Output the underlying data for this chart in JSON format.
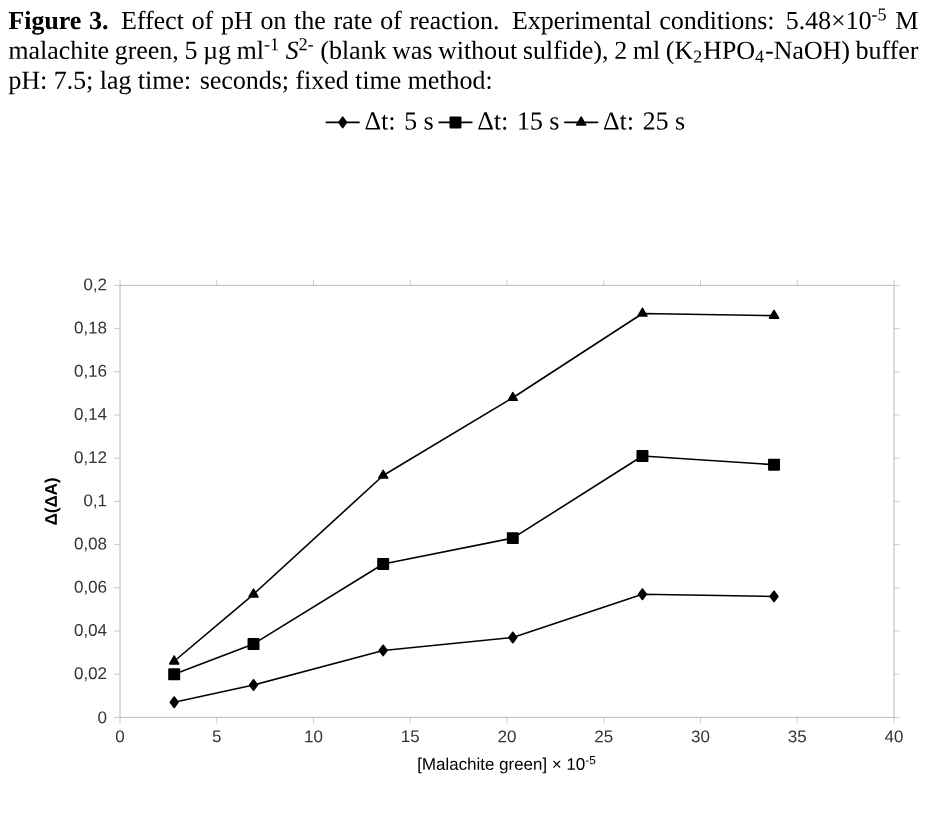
{
  "chart_data": {
    "type": "line",
    "title": "**Figure 3.** Effect of pH on the rate of reaction. Experimental conditions: 5.48×10$^{-5}$ M malachite green, 5 µg ml$^{-1}$ *S*$^{2-}$ (blank was without sulfide), 2 ml (K$_{2}$HPO$_{4}$-NaOH) buffer pH: 7.5; lag time: seconds; fixed time method:",
    "xlabel": "[Malachite green] × 10$^{-5}$",
    "ylabel": "Δ(ΔA)",
    "x": [
      2.8,
      6.9,
      13.6,
      20.3,
      27.0,
      33.8
    ],
    "series": [
      {
        "name": "Δt: 5 s",
        "color": "#000000",
        "marker": "diamond",
        "values": [
          0.007,
          0.015,
          0.031,
          0.037,
          0.057,
          0.056
        ]
      },
      {
        "name": "Δt: 15 s",
        "color": "#000000",
        "marker": "square",
        "values": [
          0.02,
          0.034,
          0.071,
          0.083,
          0.121,
          0.117
        ]
      },
      {
        "name": "Δt: 25 s",
        "color": "#000000",
        "marker": "triangle",
        "values": [
          0.026,
          0.057,
          0.112,
          0.148,
          0.187,
          0.186
        ]
      }
    ],
    "xlim": [
      0,
      40
    ],
    "xticks": [
      0,
      5,
      10,
      15,
      20,
      25,
      30,
      35,
      40
    ],
    "ylim": [
      0,
      0.2
    ],
    "yticks": [
      {
        "value": 0,
        "label": "0"
      },
      {
        "value": 0.02,
        "label": "0,02"
      },
      {
        "value": 0.04,
        "label": "0,04"
      },
      {
        "value": 0.06,
        "label": "0,06"
      },
      {
        "value": 0.08,
        "label": "0,08"
      },
      {
        "value": 0.1,
        "label": "0,1"
      },
      {
        "value": 0.12,
        "label": "0,12"
      },
      {
        "value": 0.14,
        "label": "0,14"
      },
      {
        "value": 0.16,
        "label": "0,16"
      },
      {
        "value": 0.18,
        "label": "0,18"
      },
      {
        "value": 0.2,
        "label": "0,2"
      }
    ],
    "legend": "top",
    "line_style": "solid"
  }
}
